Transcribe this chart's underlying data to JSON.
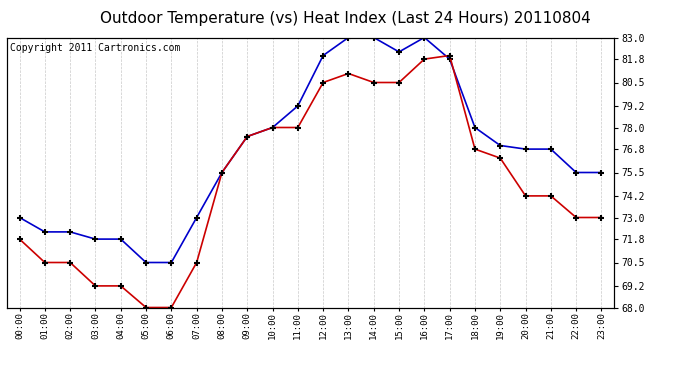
{
  "title": "Outdoor Temperature (vs) Heat Index (Last 24 Hours) 20110804",
  "copyright": "Copyright 2011 Cartronics.com",
  "hours": [
    "00:00",
    "01:00",
    "02:00",
    "03:00",
    "04:00",
    "05:00",
    "06:00",
    "07:00",
    "08:00",
    "09:00",
    "10:00",
    "11:00",
    "12:00",
    "13:00",
    "14:00",
    "15:00",
    "16:00",
    "17:00",
    "18:00",
    "19:00",
    "20:00",
    "21:00",
    "22:00",
    "23:00"
  ],
  "blue_temp": [
    73.0,
    72.2,
    72.2,
    71.8,
    71.8,
    70.5,
    70.5,
    73.0,
    75.5,
    77.5,
    78.0,
    79.2,
    82.0,
    83.0,
    83.0,
    82.2,
    83.0,
    81.8,
    78.0,
    77.0,
    76.8,
    76.8,
    75.5,
    75.5
  ],
  "red_heat": [
    71.8,
    70.5,
    70.5,
    69.2,
    69.2,
    68.0,
    68.0,
    70.5,
    75.5,
    77.5,
    78.0,
    78.0,
    80.5,
    81.0,
    80.5,
    80.5,
    81.8,
    82.0,
    76.8,
    76.3,
    74.2,
    74.2,
    73.0,
    73.0
  ],
  "ylim_min": 68.0,
  "ylim_max": 83.0,
  "yticks": [
    68.0,
    69.2,
    70.5,
    71.8,
    73.0,
    74.2,
    75.5,
    76.8,
    78.0,
    79.2,
    80.5,
    81.8,
    83.0
  ],
  "blue_color": "#0000cc",
  "red_color": "#cc0000",
  "background_color": "#ffffff",
  "grid_color": "#bbbbbb",
  "title_fontsize": 11,
  "copyright_fontsize": 7
}
